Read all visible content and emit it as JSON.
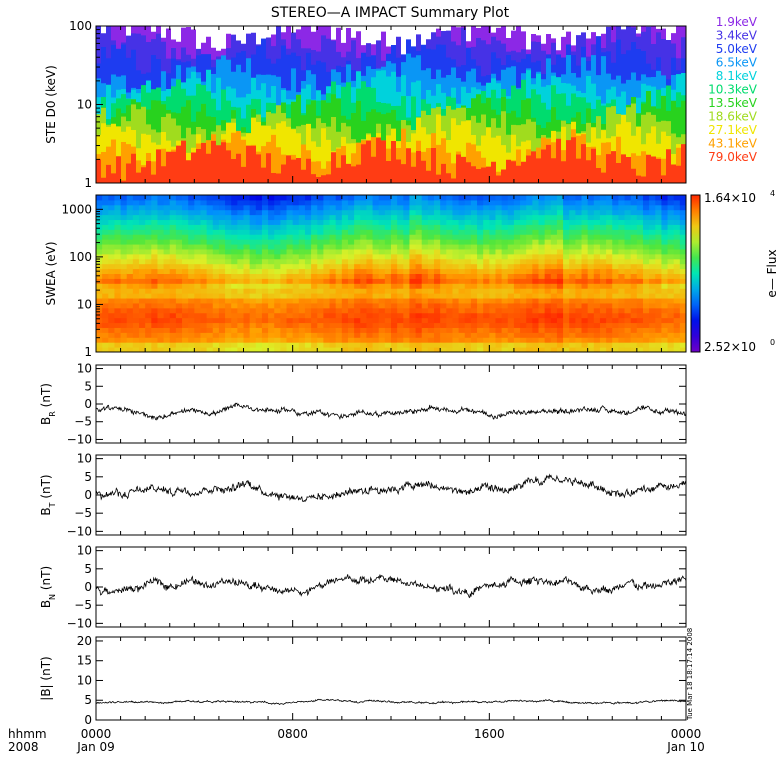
{
  "title": "STEREO—A IMPACT Summary Plot",
  "time_axis": {
    "label_line1": "hhmm",
    "label_line2": "2008",
    "ticks": [
      {
        "hhmm": "0000",
        "date": "Jan 09",
        "hour": 0
      },
      {
        "hhmm": "0800",
        "date": "",
        "hour": 8
      },
      {
        "hhmm": "1600",
        "date": "",
        "hour": 16
      },
      {
        "hhmm": "0000",
        "date": "Jan 10",
        "hour": 24
      }
    ],
    "range_hours": [
      0,
      24
    ],
    "minor_tick_step_hours": 1
  },
  "timestamp_text": "Tue Mar 18 18:17:14 2008",
  "chart_data": [
    {
      "id": "ste",
      "type": "line",
      "ylabel": "STE D0 (keV)",
      "scale": "log",
      "ylim": [
        1,
        100
      ],
      "ticks": [
        "1",
        "10",
        "100"
      ],
      "tick_values": [
        1,
        10,
        100
      ],
      "legend_placement": "right",
      "series": [
        {
          "name": "1.9keV",
          "color": "#8c28e6",
          "level": 75
        },
        {
          "name": "3.4keV",
          "color": "#4632e6",
          "level": 58
        },
        {
          "name": "5.0keV",
          "color": "#1e3cf0",
          "level": 38
        },
        {
          "name": "6.5keV",
          "color": "#0a96f5",
          "level": 25
        },
        {
          "name": "8.1keV",
          "color": "#00d2dc",
          "level": 16
        },
        {
          "name": "10.3keV",
          "color": "#00dc6e",
          "level": 11
        },
        {
          "name": "13.5keV",
          "color": "#28d21e",
          "level": 8
        },
        {
          "name": "18.6keV",
          "color": "#a0dc1e",
          "level": 5.5
        },
        {
          "name": "27.1keV",
          "color": "#f0e600",
          "level": 4
        },
        {
          "name": "43.1keV",
          "color": "#ffa000",
          "level": 2.6
        },
        {
          "name": "79.0keV",
          "color": "#ff3c14",
          "level": 2.1
        }
      ]
    },
    {
      "id": "swea",
      "type": "heatmap",
      "ylabel": "SWEA (eV)",
      "scale": "log",
      "ylim": [
        1,
        2000
      ],
      "ticks": [
        "1",
        "10",
        "100",
        "1000"
      ],
      "tick_values": [
        1,
        10,
        100,
        1000
      ],
      "colorbar": {
        "label": "e— Flux",
        "max_label": "1.64×10",
        "max_exp": "4",
        "min_label": "2.52×10",
        "min_exp": "0",
        "max": 16400,
        "min": 2.52
      }
    },
    {
      "id": "br",
      "type": "line",
      "ylabel_main": "B",
      "ylabel_sub": "R",
      "ylabel_unit": " (nT)",
      "ylim": [
        -11,
        11
      ],
      "ticks": [
        "−10",
        "−5",
        "0",
        "5",
        "10"
      ],
      "tick_values": [
        -10,
        -5,
        0,
        5,
        10
      ],
      "mean": -2.2,
      "amp": 1.6
    },
    {
      "id": "bt",
      "type": "line",
      "ylabel_main": "B",
      "ylabel_sub": "T",
      "ylabel_unit": " (nT)",
      "ylim": [
        -11,
        11
      ],
      "ticks": [
        "−10",
        "−5",
        "0",
        "5",
        "10"
      ],
      "tick_values": [
        -10,
        -5,
        0,
        5,
        10
      ],
      "mean": 1.8,
      "amp": 2.4
    },
    {
      "id": "bn",
      "type": "line",
      "ylabel_main": "B",
      "ylabel_sub": "N",
      "ylabel_unit": " (nT)",
      "ylim": [
        -11,
        11
      ],
      "ticks": [
        "−10",
        "−5",
        "0",
        "5",
        "10"
      ],
      "tick_values": [
        -10,
        -5,
        0,
        5,
        10
      ],
      "mean": 0.5,
      "amp": 2.3
    },
    {
      "id": "bmag",
      "type": "line",
      "ylabel_main": "|B| (nT)",
      "ylim": [
        0,
        21
      ],
      "ticks": [
        "0",
        "5",
        "10",
        "15",
        "20"
      ],
      "tick_values": [
        0,
        5,
        10,
        15,
        20
      ],
      "mean": 4.6,
      "amp": 0.5
    }
  ]
}
